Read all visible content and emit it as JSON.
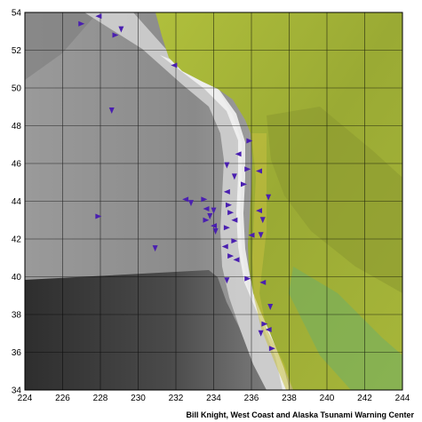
{
  "map": {
    "x_ticks": [
      "224",
      "226",
      "228",
      "230",
      "232",
      "234",
      "236",
      "238",
      "240",
      "242",
      "244"
    ],
    "y_ticks": [
      "54",
      "52",
      "50",
      "48",
      "46",
      "44",
      "42",
      "40",
      "38",
      "36",
      "34"
    ],
    "x_range": [
      224,
      244
    ],
    "y_range": [
      34,
      54
    ],
    "credit": "Bill Knight, West Coast and Alaska Tsunami Warning Center",
    "colors": {
      "ocean_deep": "#3a3a3a",
      "ocean_mid": "#8c8c8c",
      "ocean_shelf": "#d8d8d8",
      "land_low": "#a8b83a",
      "land_high": "#7a8a2e",
      "land_coast": "#5fa060",
      "grid": "#000000",
      "marker": "#4a1fb0"
    },
    "markers": [
      {
        "lon": 227.0,
        "lat": 53.4
      },
      {
        "lon": 227.9,
        "lat": 53.8
      },
      {
        "lon": 229.1,
        "lat": 53.1
      },
      {
        "lon": 228.8,
        "lat": 52.8
      },
      {
        "lon": 231.9,
        "lat": 51.2
      },
      {
        "lon": 228.6,
        "lat": 48.8
      },
      {
        "lon": 235.9,
        "lat": 47.2
      },
      {
        "lon": 235.3,
        "lat": 46.5
      },
      {
        "lon": 234.7,
        "lat": 45.9
      },
      {
        "lon": 235.8,
        "lat": 45.7
      },
      {
        "lon": 236.4,
        "lat": 45.6
      },
      {
        "lon": 235.1,
        "lat": 45.3
      },
      {
        "lon": 235.6,
        "lat": 44.9
      },
      {
        "lon": 234.7,
        "lat": 44.5
      },
      {
        "lon": 236.9,
        "lat": 44.2
      },
      {
        "lon": 233.5,
        "lat": 44.1
      },
      {
        "lon": 232.5,
        "lat": 44.1
      },
      {
        "lon": 232.8,
        "lat": 43.9
      },
      {
        "lon": 234.8,
        "lat": 43.8
      },
      {
        "lon": 233.6,
        "lat": 43.6
      },
      {
        "lon": 234.0,
        "lat": 43.5
      },
      {
        "lon": 234.9,
        "lat": 43.4
      },
      {
        "lon": 236.4,
        "lat": 43.5
      },
      {
        "lon": 233.8,
        "lat": 43.2
      },
      {
        "lon": 233.6,
        "lat": 43.0
      },
      {
        "lon": 235.1,
        "lat": 43.0
      },
      {
        "lon": 236.6,
        "lat": 43.0
      },
      {
        "lon": 227.9,
        "lat": 43.2
      },
      {
        "lon": 234.0,
        "lat": 42.7
      },
      {
        "lon": 234.1,
        "lat": 42.4
      },
      {
        "lon": 234.7,
        "lat": 42.6
      },
      {
        "lon": 236.0,
        "lat": 42.2
      },
      {
        "lon": 236.5,
        "lat": 42.2
      },
      {
        "lon": 235.1,
        "lat": 41.9
      },
      {
        "lon": 234.6,
        "lat": 41.6
      },
      {
        "lon": 230.9,
        "lat": 41.5
      },
      {
        "lon": 234.9,
        "lat": 41.1
      },
      {
        "lon": 235.2,
        "lat": 40.9
      },
      {
        "lon": 234.7,
        "lat": 39.8
      },
      {
        "lon": 235.8,
        "lat": 39.9
      },
      {
        "lon": 236.6,
        "lat": 39.7
      },
      {
        "lon": 237.0,
        "lat": 38.4
      },
      {
        "lon": 236.7,
        "lat": 37.5
      },
      {
        "lon": 236.9,
        "lat": 37.2
      },
      {
        "lon": 236.5,
        "lat": 37.0
      },
      {
        "lon": 237.1,
        "lat": 36.2
      }
    ]
  }
}
